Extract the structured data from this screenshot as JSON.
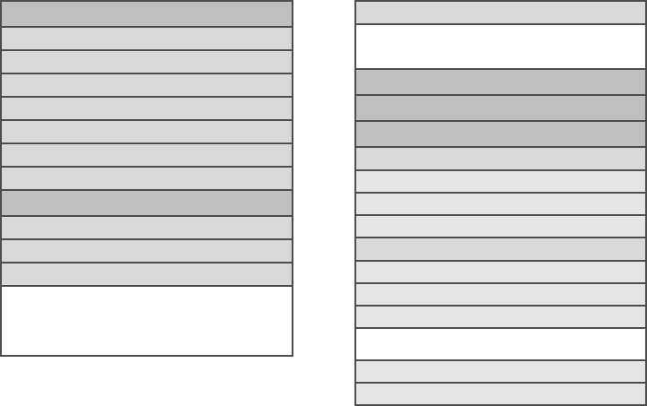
{
  "colors": {
    "border": "#4d4d4d",
    "header": "#bfbfbf",
    "row": "#d9d9d9",
    "row_light": "#e5e5e5",
    "blank": "#ffffff"
  },
  "left_panel": {
    "rows": [
      "header",
      "row",
      "row",
      "row",
      "row",
      "row",
      "row",
      "row",
      "header",
      "row",
      "row",
      "row",
      "blank"
    ]
  },
  "right_panel": {
    "rows": [
      "row",
      "blank",
      "header",
      "header",
      "header",
      "row",
      "row_light",
      "row_light",
      "row_light",
      "row",
      "row_light",
      "row_light",
      "row_light",
      "blank",
      "row_light",
      "row_light"
    ]
  }
}
